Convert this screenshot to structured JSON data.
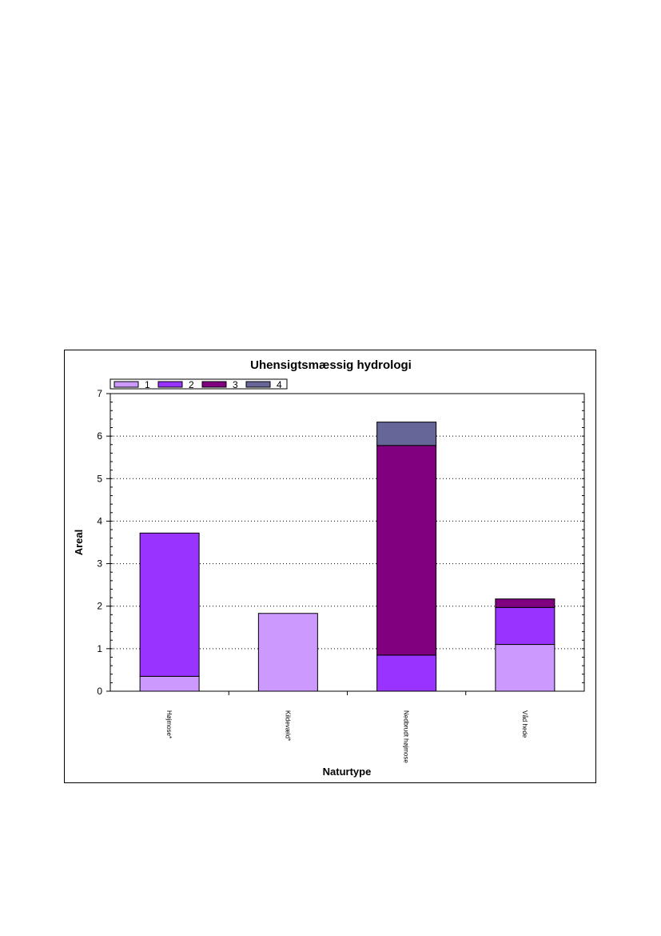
{
  "chart_data": {
    "type": "bar",
    "stacked": true,
    "title": "Uhensigtsmæssig hydrologi",
    "xlabel": "Naturtype",
    "ylabel": "Areal",
    "ylim": [
      0,
      7
    ],
    "yticks": [
      "0",
      "1",
      "2",
      "3",
      "4",
      "5",
      "6",
      "7"
    ],
    "grid": "horizontal-dotted",
    "legend_position": "top-left",
    "categories": [
      "Højmose*",
      "Kildevæld*",
      "Nedbrudt højmose",
      "Våd hede"
    ],
    "series": [
      {
        "name": "1",
        "color": "#cc99ff",
        "values": [
          0.35,
          1.83,
          0,
          1.1
        ]
      },
      {
        "name": "2",
        "color": "#9933ff",
        "values": [
          3.37,
          0,
          0.85,
          0.87
        ]
      },
      {
        "name": "3",
        "color": "#800080",
        "values": [
          0,
          0,
          4.93,
          0.2
        ]
      },
      {
        "name": "4",
        "color": "#666699",
        "values": [
          0,
          0,
          0.55,
          0
        ]
      }
    ]
  }
}
